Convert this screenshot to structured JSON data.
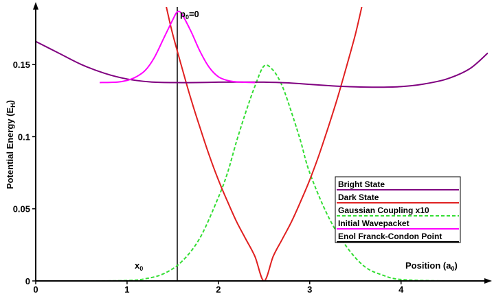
{
  "chart_data": {
    "type": "line",
    "xlabel_main": "Position (a",
    "xlabel_sub": "0",
    "xlabel_end": ")",
    "ylabel_main": "Potential Energy (E",
    "ylabel_sub": "H",
    "ylabel_end": ")",
    "xlim": [
      0,
      4.95
    ],
    "ylim": [
      0,
      0.19
    ],
    "x_ticks": [
      0,
      1,
      2,
      3,
      4
    ],
    "x_tick_labels": [
      "0",
      "1",
      "2",
      "3",
      "4"
    ],
    "y_ticks": [
      0,
      0.05,
      0.1,
      0.15
    ],
    "y_tick_labels": [
      "0",
      "0.05",
      "0.1",
      "0.15"
    ],
    "grid": false,
    "legend_position": "bottom-right",
    "annotations": {
      "p0_main": "p",
      "p0_sub": "0",
      "p0_end": "=0",
      "x0_main": "x",
      "x0_sub": "0"
    },
    "series": [
      {
        "name": "Bright State",
        "color": "#800080",
        "style": "solid",
        "x": [
          0,
          0.25,
          0.5,
          0.75,
          1.0,
          1.25,
          1.5,
          1.75,
          2.0,
          2.25,
          2.5,
          2.75,
          3.0,
          3.25,
          3.5,
          3.75,
          4.0,
          4.25,
          4.5,
          4.75,
          4.95
        ],
        "y": [
          0.166,
          0.158,
          0.15,
          0.144,
          0.14,
          0.138,
          0.1375,
          0.1375,
          0.1378,
          0.1379,
          0.1378,
          0.1373,
          0.1363,
          0.1352,
          0.1345,
          0.1343,
          0.1347,
          0.1365,
          0.14,
          0.147,
          0.158
        ]
      },
      {
        "name": "Dark State",
        "color": "#e02020",
        "style": "solid",
        "x": [
          1.43,
          1.5,
          1.6,
          1.7,
          1.8,
          1.9,
          2.0,
          2.1,
          2.2,
          2.3,
          2.4,
          2.5,
          2.6,
          2.7,
          2.8,
          2.9,
          3.0,
          3.1,
          3.2,
          3.3,
          3.4,
          3.5,
          3.57
        ],
        "y": [
          0.19,
          0.171,
          0.148,
          0.126,
          0.106,
          0.087,
          0.07,
          0.055,
          0.041,
          0.029,
          0.017,
          0.0,
          0.017,
          0.029,
          0.041,
          0.055,
          0.07,
          0.087,
          0.106,
          0.126,
          0.148,
          0.171,
          0.19
        ]
      },
      {
        "name": "Gaussian Coupling x10",
        "color": "#33dd33",
        "style": "dashed",
        "x": [
          0,
          0.5,
          1.0,
          1.2,
          1.4,
          1.6,
          1.8,
          2.0,
          2.1,
          2.2,
          2.3,
          2.4,
          2.5,
          2.6,
          2.7,
          2.8,
          2.9,
          3.0,
          3.2,
          3.4,
          3.6,
          3.8,
          4.0,
          4.5,
          4.95
        ],
        "y": [
          0,
          0,
          0.0003,
          0.0015,
          0.005,
          0.0135,
          0.03,
          0.058,
          0.075,
          0.097,
          0.117,
          0.135,
          0.149,
          0.146,
          0.135,
          0.117,
          0.097,
          0.075,
          0.045,
          0.024,
          0.01,
          0.004,
          0.001,
          0,
          0
        ]
      },
      {
        "name": "Initial Wavepacket",
        "color": "#ff00ff",
        "style": "solid",
        "x": [
          0.7,
          0.9,
          1.0,
          1.1,
          1.2,
          1.3,
          1.4,
          1.5,
          1.55,
          1.6,
          1.7,
          1.8,
          1.9,
          2.0,
          2.1,
          2.2,
          2.4
        ],
        "y": [
          0.1375,
          0.1379,
          0.139,
          0.1415,
          0.146,
          0.155,
          0.168,
          0.181,
          0.1865,
          0.185,
          0.173,
          0.159,
          0.148,
          0.1415,
          0.139,
          0.138,
          0.1375
        ]
      },
      {
        "name": "Enol Franck-Condon Point",
        "color": "#000000",
        "style": "solid",
        "x": [
          1.55,
          1.55
        ],
        "y": [
          0,
          0.19
        ]
      }
    ]
  }
}
